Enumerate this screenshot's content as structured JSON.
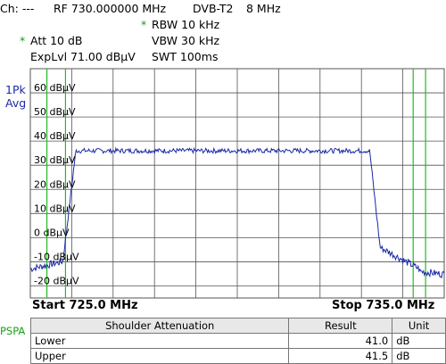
{
  "header": {
    "channel": "Ch: ---",
    "rf": "RF 730.000000 MHz",
    "standard": "DVB-T2",
    "bandwidth": "8 MHz",
    "rbw": "RBW 10 kHz",
    "vbw": "VBW 30 kHz",
    "swt": "SWT 100ms",
    "att": "Att  10 dB",
    "explvl": "ExpLvl 71.00 dBµV",
    "marker_star": "*"
  },
  "trace": {
    "mode": "1Pk",
    "detector": "Avg"
  },
  "axis": {
    "y_labels": [
      "60 dBµV",
      "50 dBµV",
      "40 dBµV",
      "30 dBµV",
      "20 dBµV",
      "10 dBµV",
      "0 dBµV",
      "-10 dBµV",
      "-20 dBµV"
    ],
    "start": "Start 725.0 MHz",
    "stop": "Stop 735.0 MHz"
  },
  "chart_data": {
    "type": "line",
    "x_range_mhz": [
      725.0,
      735.0
    ],
    "y_range_dbuv": [
      -25,
      70
    ],
    "plateau_level_dbuv": 36,
    "plateau_start_mhz": 726.1,
    "plateau_end_mhz": 733.2,
    "noise_floor_dbuv": -12,
    "marker_lines_mhz": [
      725.4,
      725.85,
      734.25,
      734.55
    ],
    "colors": {
      "trace": "#1a2aa8",
      "markers": "#22bb22",
      "grid": "#555555"
    }
  },
  "panel": {
    "tag": "PSPA"
  },
  "table": {
    "headers": [
      "Shoulder Attenuation",
      "Result",
      "Unit"
    ],
    "rows": [
      {
        "label": "Lower",
        "result": "41.0",
        "unit": "dB"
      },
      {
        "label": "Upper",
        "result": "41.5",
        "unit": "dB"
      }
    ]
  }
}
